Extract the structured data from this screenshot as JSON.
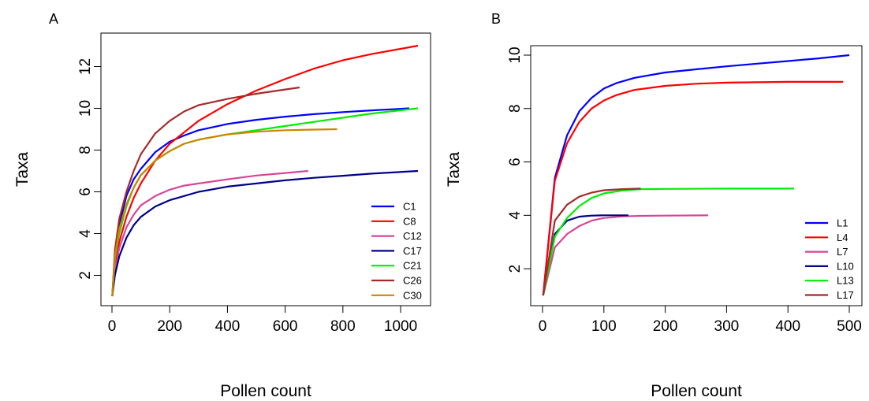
{
  "chart_data": [
    {
      "type": "line",
      "panel_label": "A",
      "xlabel": "Pollen count",
      "ylabel": "Taxa",
      "xlim": [
        0,
        1060
      ],
      "ylim": [
        1,
        13
      ],
      "xticks": [
        0,
        200,
        400,
        600,
        800,
        1000
      ],
      "yticks": [
        2,
        4,
        6,
        8,
        10,
        12
      ],
      "legend_position": "bottom-right",
      "series": [
        {
          "name": "C1",
          "color": "#0000ff",
          "points": [
            [
              1,
              1
            ],
            [
              10,
              3
            ],
            [
              25,
              4.4
            ],
            [
              50,
              5.8
            ],
            [
              75,
              6.6
            ],
            [
              100,
              7.1
            ],
            [
              150,
              7.9
            ],
            [
              200,
              8.4
            ],
            [
              250,
              8.7
            ],
            [
              300,
              8.95
            ],
            [
              400,
              9.25
            ],
            [
              500,
              9.45
            ],
            [
              600,
              9.6
            ],
            [
              700,
              9.72
            ],
            [
              800,
              9.82
            ],
            [
              900,
              9.9
            ],
            [
              1030,
              10
            ]
          ]
        },
        {
          "name": "C8",
          "color": "#ff0000",
          "points": [
            [
              1,
              1
            ],
            [
              10,
              2.5
            ],
            [
              25,
              3.6
            ],
            [
              50,
              4.8
            ],
            [
              75,
              5.7
            ],
            [
              100,
              6.4
            ],
            [
              150,
              7.5
            ],
            [
              200,
              8.3
            ],
            [
              250,
              8.85
            ],
            [
              300,
              9.4
            ],
            [
              400,
              10.2
            ],
            [
              500,
              10.85
            ],
            [
              600,
              11.4
            ],
            [
              700,
              11.9
            ],
            [
              800,
              12.3
            ],
            [
              900,
              12.6
            ],
            [
              1000,
              12.85
            ],
            [
              1060,
              13
            ]
          ]
        },
        {
          "name": "C12",
          "color": "#d9449a",
          "points": [
            [
              1,
              1
            ],
            [
              10,
              2.2
            ],
            [
              25,
              3.3
            ],
            [
              50,
              4.3
            ],
            [
              75,
              4.9
            ],
            [
              100,
              5.35
            ],
            [
              150,
              5.8
            ],
            [
              200,
              6.1
            ],
            [
              250,
              6.3
            ],
            [
              300,
              6.4
            ],
            [
              400,
              6.6
            ],
            [
              500,
              6.78
            ],
            [
              600,
              6.9
            ],
            [
              680,
              7
            ]
          ]
        },
        {
          "name": "C17",
          "color": "#00008b",
          "points": [
            [
              1,
              1
            ],
            [
              10,
              2
            ],
            [
              25,
              2.9
            ],
            [
              50,
              3.8
            ],
            [
              75,
              4.4
            ],
            [
              100,
              4.8
            ],
            [
              150,
              5.3
            ],
            [
              200,
              5.6
            ],
            [
              250,
              5.8
            ],
            [
              300,
              6
            ],
            [
              400,
              6.25
            ],
            [
              500,
              6.4
            ],
            [
              600,
              6.55
            ],
            [
              700,
              6.67
            ],
            [
              800,
              6.77
            ],
            [
              900,
              6.87
            ],
            [
              1060,
              7
            ]
          ]
        },
        {
          "name": "C21",
          "color": "#00ee00",
          "points": [
            [
              1,
              1
            ],
            [
              10,
              2.8
            ],
            [
              25,
              4
            ],
            [
              50,
              5.3
            ],
            [
              75,
              6.2
            ],
            [
              100,
              6.8
            ],
            [
              150,
              7.5
            ],
            [
              200,
              7.95
            ],
            [
              250,
              8.3
            ],
            [
              300,
              8.5
            ],
            [
              400,
              8.75
            ],
            [
              500,
              8.95
            ],
            [
              600,
              9.15
            ],
            [
              700,
              9.35
            ],
            [
              800,
              9.55
            ],
            [
              900,
              9.75
            ],
            [
              1060,
              10
            ]
          ]
        },
        {
          "name": "C26",
          "color": "#a52a2a",
          "points": [
            [
              1,
              1
            ],
            [
              10,
              3.2
            ],
            [
              25,
              4.7
            ],
            [
              50,
              6
            ],
            [
              75,
              7
            ],
            [
              100,
              7.8
            ],
            [
              150,
              8.8
            ],
            [
              200,
              9.4
            ],
            [
              250,
              9.85
            ],
            [
              300,
              10.15
            ],
            [
              400,
              10.45
            ],
            [
              500,
              10.7
            ],
            [
              600,
              10.9
            ],
            [
              650,
              11
            ]
          ]
        },
        {
          "name": "C30",
          "color": "#cd8500",
          "points": [
            [
              1,
              1
            ],
            [
              10,
              2.9
            ],
            [
              25,
              4.2
            ],
            [
              50,
              5.4
            ],
            [
              75,
              6.2
            ],
            [
              100,
              6.8
            ],
            [
              150,
              7.5
            ],
            [
              200,
              7.95
            ],
            [
              250,
              8.3
            ],
            [
              300,
              8.5
            ],
            [
              400,
              8.75
            ],
            [
              500,
              8.88
            ],
            [
              600,
              8.95
            ],
            [
              700,
              8.98
            ],
            [
              780,
              9
            ]
          ]
        }
      ]
    },
    {
      "type": "line",
      "panel_label": "B",
      "xlabel": "Pollen count",
      "ylabel": "Taxa",
      "xlim": [
        0,
        500
      ],
      "ylim": [
        1,
        10
      ],
      "xticks": [
        0,
        100,
        200,
        300,
        400,
        500
      ],
      "yticks": [
        2,
        4,
        6,
        8,
        10
      ],
      "legend_position": "bottom-right",
      "series": [
        {
          "name": "L1",
          "color": "#0000ff",
          "points": [
            [
              1,
              1
            ],
            [
              20,
              5.4
            ],
            [
              40,
              7
            ],
            [
              60,
              7.9
            ],
            [
              80,
              8.4
            ],
            [
              100,
              8.75
            ],
            [
              120,
              8.95
            ],
            [
              150,
              9.15
            ],
            [
              200,
              9.35
            ],
            [
              250,
              9.47
            ],
            [
              300,
              9.58
            ],
            [
              350,
              9.68
            ],
            [
              400,
              9.78
            ],
            [
              450,
              9.88
            ],
            [
              500,
              10
            ]
          ]
        },
        {
          "name": "L4",
          "color": "#ff0000",
          "points": [
            [
              1,
              1
            ],
            [
              20,
              5.3
            ],
            [
              40,
              6.7
            ],
            [
              60,
              7.5
            ],
            [
              80,
              8
            ],
            [
              100,
              8.3
            ],
            [
              120,
              8.5
            ],
            [
              150,
              8.7
            ],
            [
              200,
              8.85
            ],
            [
              250,
              8.93
            ],
            [
              300,
              8.97
            ],
            [
              400,
              9
            ],
            [
              490,
              9
            ]
          ]
        },
        {
          "name": "L7",
          "color": "#d9449a",
          "points": [
            [
              1,
              1
            ],
            [
              20,
              2.8
            ],
            [
              40,
              3.3
            ],
            [
              60,
              3.6
            ],
            [
              80,
              3.8
            ],
            [
              100,
              3.9
            ],
            [
              130,
              3.96
            ],
            [
              160,
              3.98
            ],
            [
              200,
              3.99
            ],
            [
              270,
              4
            ]
          ]
        },
        {
          "name": "L10",
          "color": "#00008b",
          "points": [
            [
              1,
              1
            ],
            [
              20,
              3.3
            ],
            [
              40,
              3.8
            ],
            [
              60,
              3.95
            ],
            [
              80,
              3.99
            ],
            [
              100,
              4
            ],
            [
              140,
              4
            ]
          ]
        },
        {
          "name": "L13",
          "color": "#00ee00",
          "points": [
            [
              1,
              1
            ],
            [
              20,
              3.2
            ],
            [
              40,
              3.9
            ],
            [
              60,
              4.35
            ],
            [
              80,
              4.65
            ],
            [
              100,
              4.82
            ],
            [
              130,
              4.93
            ],
            [
              160,
              4.98
            ],
            [
              200,
              4.99
            ],
            [
              300,
              5
            ],
            [
              410,
              5
            ]
          ]
        },
        {
          "name": "L17",
          "color": "#a52a2a",
          "points": [
            [
              1,
              1
            ],
            [
              20,
              3.8
            ],
            [
              40,
              4.4
            ],
            [
              60,
              4.7
            ],
            [
              80,
              4.85
            ],
            [
              100,
              4.94
            ],
            [
              130,
              4.98
            ],
            [
              160,
              5
            ]
          ]
        }
      ]
    }
  ]
}
